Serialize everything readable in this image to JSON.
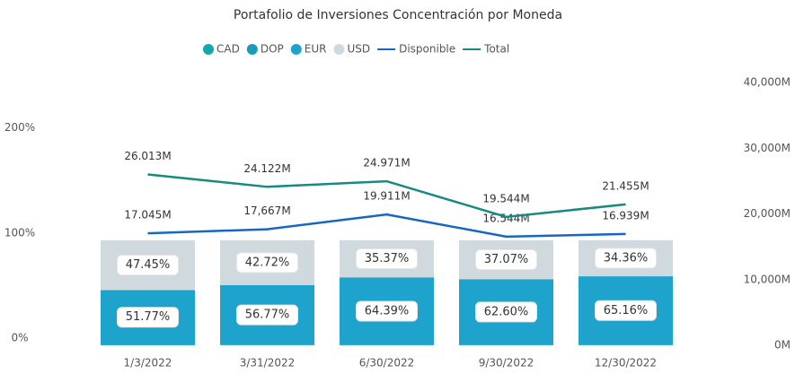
{
  "chart_data": {
    "type": "combo",
    "title": "Portafolio de Inversiones Concentración por Moneda",
    "categories": [
      "1/3/2022",
      "3/31/2022",
      "6/30/2022",
      "9/30/2022",
      "12/30/2022"
    ],
    "series": [
      {
        "name": "CAD",
        "color": "#14a8ad",
        "values": [
          0.5,
          0.3,
          0.14,
          0.2,
          0.28
        ]
      },
      {
        "name": "DOP",
        "color": "#1b9bbb",
        "values": [
          0.28,
          0.21,
          0.1,
          0.13,
          0.2
        ]
      },
      {
        "name": "EUR",
        "color": "#1ea3cc",
        "values": [
          51.77,
          56.77,
          64.39,
          62.6,
          65.16
        ],
        "value_labels": [
          "51.77%",
          "56.77%",
          "64.39%",
          "62.60%",
          "65.16%"
        ]
      },
      {
        "name": "USD",
        "color": "#cfd9de",
        "values": [
          47.45,
          42.72,
          35.37,
          37.07,
          34.36
        ],
        "value_labels": [
          "47.45%",
          "42.72%",
          "35.37%",
          "37.07%",
          "34.36%"
        ]
      },
      {
        "name": "Disponible",
        "color": "#1766c2",
        "axis": "y2",
        "values": [
          17045,
          17667,
          19911,
          16544,
          16939
        ],
        "value_labels": [
          "17.045M",
          "17,667M",
          "19.911M",
          "16.544M",
          "16.939M"
        ]
      },
      {
        "name": "Total",
        "color": "#168a80",
        "axis": "y2",
        "values": [
          26013,
          24122,
          24971,
          19544,
          21455
        ],
        "value_labels": [
          "26.013M",
          "24.122M",
          "24.971M",
          "19.544M",
          "21.455M"
        ]
      }
    ],
    "ylim": [
      0,
      250
    ],
    "yticks": [
      {
        "value": 0,
        "label": "0%"
      },
      {
        "value": 100,
        "label": "100%"
      },
      {
        "value": 200,
        "label": "200%"
      }
    ],
    "y2lim": [
      0,
      40000
    ],
    "y2ticks": [
      {
        "value": 0,
        "label": "0M"
      },
      {
        "value": 10000,
        "label": "10,000M"
      },
      {
        "value": 20000,
        "label": "20,000M"
      },
      {
        "value": 30000,
        "label": "30,000M"
      },
      {
        "value": 40000,
        "label": "40,000M"
      }
    ],
    "legend": "top"
  }
}
